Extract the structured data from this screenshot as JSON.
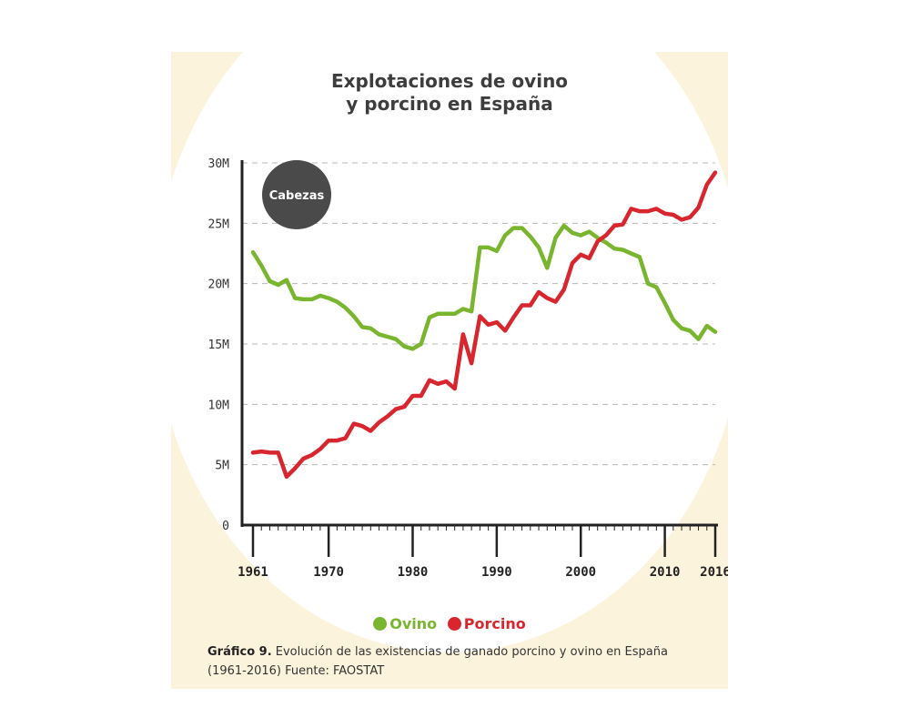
{
  "chart_data": {
    "type": "line",
    "title": "Explotaciones de ovino y porcino en España",
    "title_lines": [
      "Explotaciones de ovino",
      "y porcino en España"
    ],
    "unit_badge": "Cabezas",
    "y_ticks": [
      {
        "value": 0,
        "label": "0"
      },
      {
        "value": 5000000,
        "label": "5M"
      },
      {
        "value": 10000000,
        "label": "10M"
      },
      {
        "value": 15000000,
        "label": "15M"
      },
      {
        "value": 20000000,
        "label": "20M"
      },
      {
        "value": 25000000,
        "label": "25M"
      },
      {
        "value": 30000000,
        "label": "30M"
      }
    ],
    "x_ticks": [
      {
        "value": 1961,
        "label": "1961"
      },
      {
        "value": 1970,
        "label": "1970"
      },
      {
        "value": 1980,
        "label": "1980"
      },
      {
        "value": 1990,
        "label": "1990"
      },
      {
        "value": 2000,
        "label": "2000"
      },
      {
        "value": 2010,
        "label": "2010"
      },
      {
        "value": 2016,
        "label": "2016"
      }
    ],
    "xlim": [
      1961,
      2016
    ],
    "ylim": [
      0,
      30000000
    ],
    "grid": "horizontal dashed",
    "legend_position": "bottom",
    "x": [
      1961,
      1962,
      1963,
      1964,
      1965,
      1966,
      1967,
      1968,
      1969,
      1970,
      1971,
      1972,
      1973,
      1974,
      1975,
      1976,
      1977,
      1978,
      1979,
      1980,
      1981,
      1982,
      1983,
      1984,
      1985,
      1986,
      1987,
      1988,
      1989,
      1990,
      1991,
      1992,
      1993,
      1994,
      1995,
      1996,
      1997,
      1998,
      1999,
      2000,
      2001,
      2002,
      2003,
      2004,
      2005,
      2006,
      2007,
      2008,
      2009,
      2010,
      2011,
      2012,
      2013,
      2014,
      2015,
      2016
    ],
    "series": [
      {
        "name": "Ovino",
        "color": "#7ab52f",
        "values": [
          22600000,
          21500000,
          20200000,
          19900000,
          20300000,
          18800000,
          18700000,
          18700000,
          19000000,
          18800000,
          18500000,
          18000000,
          17300000,
          16400000,
          16300000,
          15800000,
          15600000,
          15400000,
          14800000,
          14600000,
          15000000,
          17200000,
          17500000,
          17500000,
          17500000,
          17900000,
          17700000,
          23000000,
          23000000,
          22700000,
          24000000,
          24600000,
          24600000,
          23900000,
          23000000,
          21300000,
          23800000,
          24800000,
          24200000,
          24000000,
          24300000,
          23800000,
          23400000,
          22900000,
          22800000,
          22500000,
          22200000,
          20000000,
          19700000,
          18400000,
          17000000,
          16300000,
          16100000,
          15400000,
          16500000,
          16000000
        ]
      },
      {
        "name": "Porcino",
        "color": "#d8262e",
        "values": [
          6000000,
          6100000,
          6000000,
          6000000,
          4000000,
          4700000,
          5500000,
          5800000,
          6300000,
          7000000,
          7000000,
          7200000,
          8400000,
          8200000,
          7800000,
          8500000,
          9000000,
          9600000,
          9800000,
          10700000,
          10700000,
          12000000,
          11700000,
          11900000,
          11300000,
          15800000,
          13400000,
          17300000,
          16600000,
          16800000,
          16100000,
          17200000,
          18200000,
          18200000,
          19300000,
          18800000,
          18500000,
          19500000,
          21700000,
          22400000,
          22100000,
          23500000,
          24000000,
          24800000,
          24900000,
          26200000,
          26000000,
          26000000,
          26200000,
          25800000,
          25700000,
          25300000,
          25500000,
          26300000,
          28200000,
          29200000
        ]
      }
    ]
  },
  "legend": [
    {
      "label": "Ovino",
      "color": "#7ab52f"
    },
    {
      "label": "Porcino",
      "color": "#d8262e"
    }
  ],
  "caption": {
    "bold": "Gráfico 9.",
    "text": " Evolución de las existencias de ganado porcino y ovino en España (1961-2016) Fuente: FAOSTAT"
  }
}
